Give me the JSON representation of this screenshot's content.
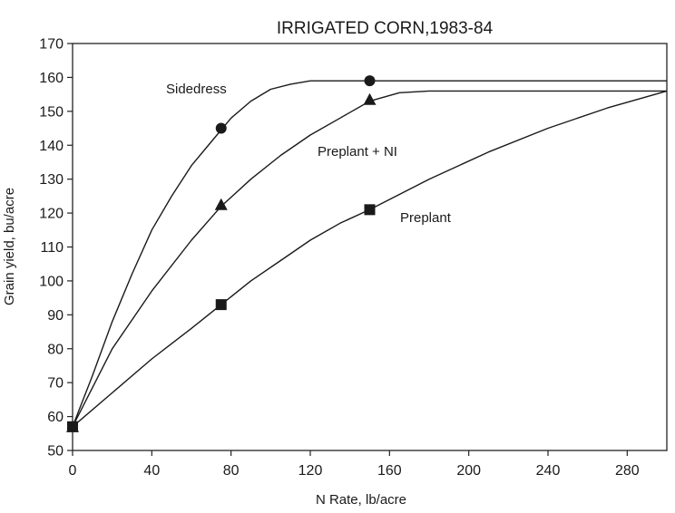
{
  "chart_data": {
    "type": "line",
    "title": "IRRIGATED CORN,1983-84",
    "xlabel": "N Rate, lb/acre",
    "ylabel": "Grain yield, bu/acre",
    "xlim": [
      0,
      300
    ],
    "ylim": [
      50,
      170
    ],
    "xticks": [
      0,
      40,
      80,
      120,
      160,
      200,
      240,
      280
    ],
    "yticks": [
      50,
      60,
      70,
      80,
      90,
      100,
      110,
      120,
      130,
      140,
      150,
      160,
      170
    ],
    "grid": false,
    "legend": "none",
    "series": [
      {
        "name": "Sidedress",
        "marker": "circle",
        "curve": [
          [
            0,
            57
          ],
          [
            10,
            72
          ],
          [
            20,
            88
          ],
          [
            30,
            102
          ],
          [
            40,
            115
          ],
          [
            50,
            125
          ],
          [
            60,
            134
          ],
          [
            70,
            141
          ],
          [
            80,
            148
          ],
          [
            90,
            153
          ],
          [
            100,
            156.5
          ],
          [
            110,
            158
          ],
          [
            120,
            159
          ],
          [
            150,
            159
          ],
          [
            300,
            159
          ]
        ],
        "points": [
          [
            0,
            57
          ],
          [
            75,
            145
          ],
          [
            150,
            159
          ]
        ]
      },
      {
        "name": "Preplant + NI",
        "marker": "triangle",
        "curve": [
          [
            0,
            57
          ],
          [
            20,
            80
          ],
          [
            40,
            97
          ],
          [
            60,
            112
          ],
          [
            75,
            122
          ],
          [
            90,
            130
          ],
          [
            105,
            137
          ],
          [
            120,
            143
          ],
          [
            135,
            148
          ],
          [
            150,
            153
          ],
          [
            165,
            155.5
          ],
          [
            180,
            156
          ],
          [
            300,
            156
          ]
        ],
        "points": [
          [
            0,
            57
          ],
          [
            75,
            122.5
          ],
          [
            150,
            153.5
          ]
        ]
      },
      {
        "name": "Preplant",
        "marker": "square",
        "curve": [
          [
            0,
            57
          ],
          [
            20,
            67
          ],
          [
            40,
            77
          ],
          [
            60,
            86
          ],
          [
            75,
            93
          ],
          [
            90,
            100
          ],
          [
            105,
            106
          ],
          [
            120,
            112
          ],
          [
            135,
            117
          ],
          [
            150,
            121
          ],
          [
            180,
            130
          ],
          [
            210,
            138
          ],
          [
            240,
            145
          ],
          [
            270,
            151
          ],
          [
            300,
            156
          ]
        ],
        "points": [
          [
            0,
            57
          ],
          [
            75,
            93
          ],
          [
            150,
            121
          ]
        ]
      }
    ]
  }
}
